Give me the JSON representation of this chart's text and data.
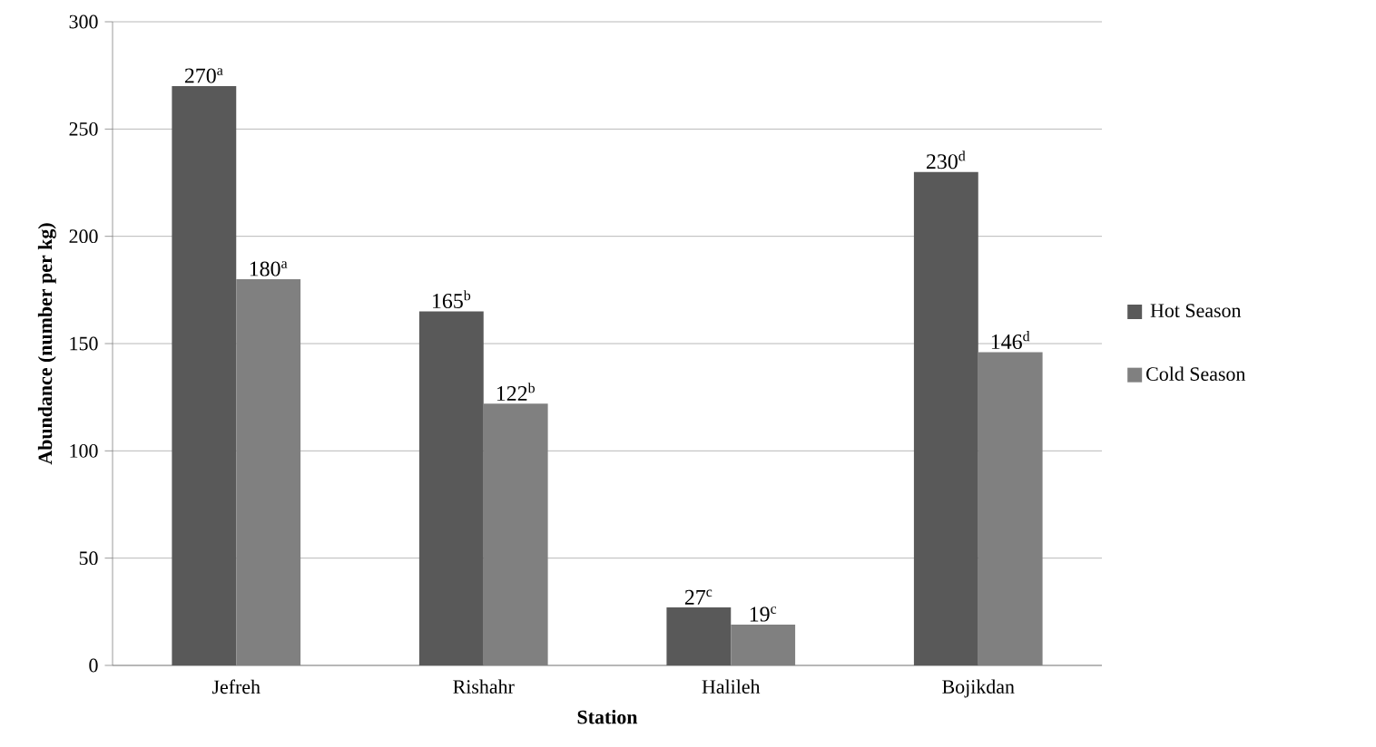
{
  "chart_data": {
    "type": "bar",
    "xlabel": "Station",
    "ylabel": "Abundance (number per kg)",
    "categories": [
      "Jefreh",
      "Rishahr",
      "Halileh",
      "Bojikdan"
    ],
    "series": [
      {
        "name": "Hot Season",
        "color": "#595959",
        "values": [
          270,
          165,
          27,
          230
        ],
        "value_labels": [
          "270$^{a}$",
          "165$^{b}$",
          "27$^{c}$",
          "230$^{d}$"
        ]
      },
      {
        "name": "Cold Season",
        "color": "#808080",
        "values": [
          180,
          122,
          19,
          146
        ],
        "value_labels": [
          "180$^{a}$",
          "122$^{b}$",
          "19$^{c}$",
          "146$^{d}$"
        ]
      }
    ],
    "ylim": [
      0,
      300
    ],
    "yticks": [
      0,
      50,
      100,
      150,
      200,
      250,
      300
    ],
    "grid": "y",
    "legend": "right"
  }
}
